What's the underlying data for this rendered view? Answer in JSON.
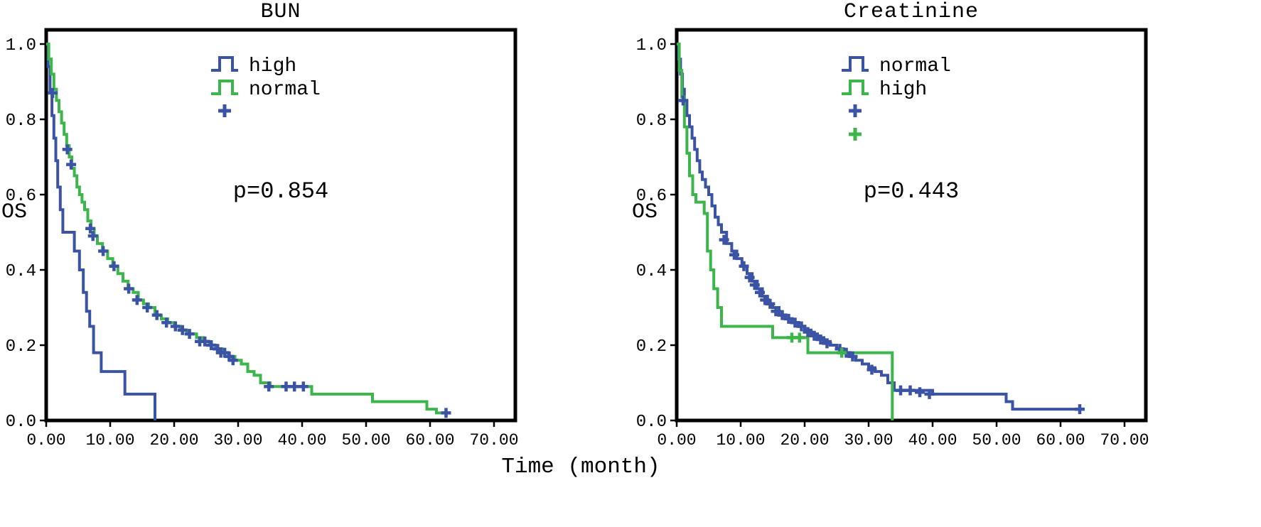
{
  "colors": {
    "blue": "#3a53a4",
    "green": "#3cb54a",
    "axis": "#000000"
  },
  "shared": {
    "xlabel": "Time (month)"
  },
  "chart_data": [
    {
      "type": "line",
      "subtype": "kaplan-meier-step-survival",
      "title": "BUN",
      "ylabel": "OS",
      "p_value": "p=0.854",
      "xlim": [
        0,
        70
      ],
      "ylim": [
        0.0,
        1.0
      ],
      "grid": false,
      "legend_position": "upper-center-left",
      "xticks": [
        "0.00",
        "10.00",
        "20.00",
        "30.00",
        "40.00",
        "50.00",
        "60.00",
        "70.00"
      ],
      "yticks": [
        "0.0",
        "0.2",
        "0.4",
        "0.6",
        "0.8",
        "1.0"
      ],
      "legend": [
        {
          "label": "high",
          "color": "blue",
          "glyph": "step"
        },
        {
          "label": "normal",
          "color": "green",
          "glyph": "step"
        },
        {
          "label": "",
          "color": "blue",
          "glyph": "plus"
        }
      ],
      "series": [
        {
          "name": "high",
          "color": "blue",
          "points": [
            [
              0,
              1.0
            ],
            [
              0.3,
              0.94
            ],
            [
              0.6,
              0.87
            ],
            [
              0.9,
              0.81
            ],
            [
              1.2,
              0.75
            ],
            [
              1.5,
              0.69
            ],
            [
              1.8,
              0.62
            ],
            [
              2.2,
              0.56
            ],
            [
              2.6,
              0.5
            ],
            [
              4.4,
              0.45
            ],
            [
              5.2,
              0.4
            ],
            [
              5.8,
              0.34
            ],
            [
              6.3,
              0.29
            ],
            [
              6.8,
              0.25
            ],
            [
              7.4,
              0.18
            ],
            [
              8.6,
              0.13
            ],
            [
              12.3,
              0.07
            ],
            [
              17.0,
              0.0
            ]
          ]
        },
        {
          "name": "normal",
          "color": "green",
          "points": [
            [
              0,
              1.0
            ],
            [
              0.4,
              0.96
            ],
            [
              0.8,
              0.92
            ],
            [
              1.2,
              0.88
            ],
            [
              1.6,
              0.85
            ],
            [
              2.0,
              0.82
            ],
            [
              2.4,
              0.79
            ],
            [
              2.8,
              0.76
            ],
            [
              3.2,
              0.73
            ],
            [
              3.6,
              0.7
            ],
            [
              4.0,
              0.67
            ],
            [
              4.4,
              0.65
            ],
            [
              4.8,
              0.62
            ],
            [
              5.2,
              0.6
            ],
            [
              5.6,
              0.58
            ],
            [
              6.0,
              0.56
            ],
            [
              6.5,
              0.53
            ],
            [
              7.0,
              0.51
            ],
            [
              7.5,
              0.49
            ],
            [
              8.0,
              0.47
            ],
            [
              8.8,
              0.45
            ],
            [
              9.6,
              0.43
            ],
            [
              10.4,
              0.41
            ],
            [
              11.2,
              0.39
            ],
            [
              12.0,
              0.37
            ],
            [
              12.8,
              0.35
            ],
            [
              13.6,
              0.34
            ],
            [
              14.4,
              0.32
            ],
            [
              15.2,
              0.31
            ],
            [
              16.0,
              0.3
            ],
            [
              17.0,
              0.28
            ],
            [
              18.0,
              0.27
            ],
            [
              19.0,
              0.26
            ],
            [
              20.0,
              0.25
            ],
            [
              21.0,
              0.24
            ],
            [
              22.0,
              0.23
            ],
            [
              23.5,
              0.22
            ],
            [
              24.5,
              0.21
            ],
            [
              25.5,
              0.2
            ],
            [
              26.5,
              0.19
            ],
            [
              27.5,
              0.18
            ],
            [
              28.5,
              0.17
            ],
            [
              29.5,
              0.16
            ],
            [
              30.5,
              0.15
            ],
            [
              31.5,
              0.13
            ],
            [
              32.5,
              0.12
            ],
            [
              33.5,
              0.1
            ],
            [
              35.0,
              0.09
            ],
            [
              41.5,
              0.07
            ],
            [
              51.0,
              0.05
            ],
            [
              59.5,
              0.03
            ],
            [
              61.0,
              0.02
            ],
            [
              63.0,
              0.02
            ]
          ]
        }
      ],
      "censor_marks": [
        {
          "color": "blue",
          "points": [
            [
              1.0,
              0.87
            ],
            [
              3.3,
              0.72
            ],
            [
              3.9,
              0.68
            ],
            [
              6.9,
              0.51
            ],
            [
              7.3,
              0.49
            ],
            [
              8.9,
              0.45
            ],
            [
              10.6,
              0.41
            ],
            [
              12.9,
              0.35
            ],
            [
              14.2,
              0.32
            ],
            [
              15.8,
              0.3
            ],
            [
              17.3,
              0.28
            ],
            [
              18.8,
              0.26
            ],
            [
              20.2,
              0.25
            ],
            [
              21.3,
              0.24
            ],
            [
              22.4,
              0.23
            ],
            [
              24.0,
              0.21
            ],
            [
              24.8,
              0.21
            ],
            [
              25.8,
              0.2
            ],
            [
              26.8,
              0.19
            ],
            [
              27.3,
              0.18
            ],
            [
              27.9,
              0.18
            ],
            [
              28.6,
              0.17
            ],
            [
              29.2,
              0.16
            ],
            [
              34.8,
              0.09
            ],
            [
              37.5,
              0.09
            ],
            [
              38.8,
              0.09
            ],
            [
              40.2,
              0.09
            ],
            [
              62.5,
              0.02
            ]
          ]
        }
      ]
    },
    {
      "type": "line",
      "subtype": "kaplan-meier-step-survival",
      "title": "Creatinine",
      "ylabel": "OS",
      "p_value": "p=0.443",
      "xlim": [
        0,
        70
      ],
      "ylim": [
        0.0,
        1.0
      ],
      "grid": false,
      "legend_position": "upper-center-left",
      "xticks": [
        "0.00",
        "10.00",
        "20.00",
        "30.00",
        "40.00",
        "50.00",
        "60.00",
        "70.00"
      ],
      "yticks": [
        "0.0",
        "0.2",
        "0.4",
        "0.6",
        "0.8",
        "1.0"
      ],
      "legend": [
        {
          "label": "normal",
          "color": "blue",
          "glyph": "step"
        },
        {
          "label": "high",
          "color": "green",
          "glyph": "step"
        },
        {
          "label": "",
          "color": "blue",
          "glyph": "plus"
        },
        {
          "label": "",
          "color": "green",
          "glyph": "plus"
        }
      ],
      "series": [
        {
          "name": "normal",
          "color": "blue",
          "points": [
            [
              0,
              1.0
            ],
            [
              0.3,
              0.96
            ],
            [
              0.6,
              0.92
            ],
            [
              0.9,
              0.88
            ],
            [
              1.2,
              0.85
            ],
            [
              1.6,
              0.81
            ],
            [
              2.0,
              0.78
            ],
            [
              2.4,
              0.75
            ],
            [
              2.8,
              0.72
            ],
            [
              3.2,
              0.69
            ],
            [
              3.6,
              0.66
            ],
            [
              4.0,
              0.64
            ],
            [
              4.5,
              0.62
            ],
            [
              5.0,
              0.6
            ],
            [
              5.5,
              0.57
            ],
            [
              6.0,
              0.54
            ],
            [
              6.5,
              0.52
            ],
            [
              7.0,
              0.5
            ],
            [
              7.8,
              0.47
            ],
            [
              8.6,
              0.45
            ],
            [
              9.4,
              0.43
            ],
            [
              10.2,
              0.41
            ],
            [
              11.0,
              0.39
            ],
            [
              11.8,
              0.37
            ],
            [
              12.6,
              0.35
            ],
            [
              13.4,
              0.33
            ],
            [
              14.2,
              0.31
            ],
            [
              15.0,
              0.3
            ],
            [
              16.0,
              0.28
            ],
            [
              17.0,
              0.27
            ],
            [
              18.0,
              0.26
            ],
            [
              19.0,
              0.25
            ],
            [
              20.0,
              0.24
            ],
            [
              21.0,
              0.23
            ],
            [
              22.0,
              0.22
            ],
            [
              23.0,
              0.21
            ],
            [
              24.0,
              0.2
            ],
            [
              25.0,
              0.19
            ],
            [
              26.0,
              0.18
            ],
            [
              27.0,
              0.17
            ],
            [
              28.0,
              0.16
            ],
            [
              29.0,
              0.15
            ],
            [
              30.0,
              0.14
            ],
            [
              31.0,
              0.13
            ],
            [
              32.0,
              0.12
            ],
            [
              33.0,
              0.1
            ],
            [
              34.0,
              0.08
            ],
            [
              40.0,
              0.07
            ],
            [
              51.5,
              0.05
            ],
            [
              52.5,
              0.03
            ],
            [
              63.0,
              0.03
            ]
          ]
        },
        {
          "name": "high",
          "color": "green",
          "points": [
            [
              0,
              1.0
            ],
            [
              0.4,
              0.93
            ],
            [
              0.8,
              0.86
            ],
            [
              1.2,
              0.78
            ],
            [
              1.6,
              0.71
            ],
            [
              2.0,
              0.65
            ],
            [
              2.5,
              0.6
            ],
            [
              3.0,
              0.58
            ],
            [
              4.3,
              0.55
            ],
            [
              4.8,
              0.45
            ],
            [
              5.3,
              0.4
            ],
            [
              5.8,
              0.35
            ],
            [
              6.4,
              0.3
            ],
            [
              7.0,
              0.25
            ],
            [
              15.0,
              0.22
            ],
            [
              20.5,
              0.18
            ],
            [
              33.7,
              0.0
            ]
          ]
        }
      ],
      "censor_marks": [
        {
          "color": "blue",
          "points": [
            [
              1.0,
              0.85
            ],
            [
              7.4,
              0.48
            ],
            [
              9.0,
              0.44
            ],
            [
              10.5,
              0.41
            ],
            [
              11.4,
              0.38
            ],
            [
              12.2,
              0.36
            ],
            [
              13.0,
              0.34
            ],
            [
              13.8,
              0.32
            ],
            [
              14.6,
              0.31
            ],
            [
              15.5,
              0.29
            ],
            [
              16.5,
              0.28
            ],
            [
              17.5,
              0.27
            ],
            [
              18.5,
              0.26
            ],
            [
              19.5,
              0.25
            ],
            [
              20.5,
              0.235
            ],
            [
              21.5,
              0.225
            ],
            [
              22.5,
              0.215
            ],
            [
              23.5,
              0.205
            ],
            [
              25.5,
              0.19
            ],
            [
              26.5,
              0.18
            ],
            [
              27.5,
              0.17
            ],
            [
              30.5,
              0.135
            ],
            [
              35.0,
              0.08
            ],
            [
              36.5,
              0.08
            ],
            [
              38.0,
              0.075
            ],
            [
              39.5,
              0.07
            ],
            [
              63.0,
              0.03
            ]
          ]
        },
        {
          "color": "green",
          "points": [
            [
              18.0,
              0.22
            ],
            [
              19.2,
              0.22
            ],
            [
              25.8,
              0.18
            ]
          ]
        }
      ]
    }
  ]
}
